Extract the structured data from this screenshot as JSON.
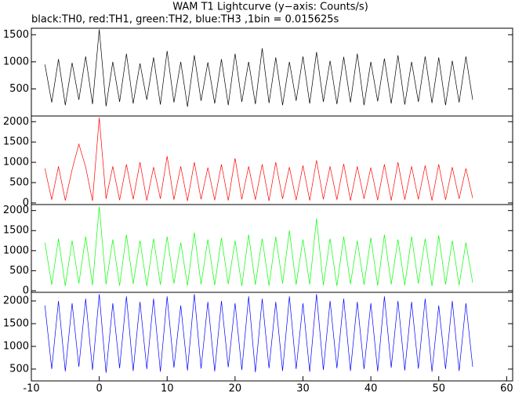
{
  "chart_data": [
    {
      "type": "line",
      "title": "WAM T1 Lightcurve (y−axis: Counts/s)",
      "subtitle": "black:TH0, red:TH1, green:TH2, blue:TH3 ,1bin = 0.015625s",
      "x": [
        -8,
        -7,
        -6,
        -5,
        -4,
        -3,
        -2,
        -1,
        0,
        1,
        2,
        3,
        4,
        5,
        6,
        7,
        8,
        9,
        10,
        11,
        12,
        13,
        14,
        15,
        16,
        17,
        18,
        19,
        20,
        21,
        22,
        23,
        24,
        25,
        26,
        27,
        28,
        29,
        30,
        31,
        32,
        33,
        34,
        35,
        36,
        37,
        38,
        39,
        40,
        41,
        42,
        43,
        44,
        45,
        46,
        47,
        48,
        49,
        50,
        51,
        52,
        53,
        54,
        55
      ],
      "xlim": [
        -10,
        61
      ],
      "ylim": [
        0,
        1620
      ],
      "yticks": [
        500,
        1000,
        1500
      ],
      "series": [
        {
          "name": "TH0",
          "color": "#000000",
          "values": [
            950,
            250,
            1050,
            200,
            980,
            300,
            1100,
            220,
            1600,
            180,
            1000,
            260,
            1150,
            230,
            970,
            300,
            1080,
            210,
            1200,
            250,
            1000,
            170,
            1120,
            280,
            990,
            230,
            1050,
            200,
            1150,
            260,
            1000,
            220,
            1250,
            240,
            1080,
            200,
            1000,
            280,
            1100,
            230,
            1180,
            260,
            1020,
            220,
            1090,
            250,
            1150,
            200,
            1000,
            270,
            1060,
            230,
            1120,
            210,
            1000,
            260,
            1100,
            240,
            1080,
            200,
            1020,
            250,
            1100,
            300
          ]
        }
      ]
    },
    {
      "type": "line",
      "x": [
        -8,
        -7,
        -6,
        -5,
        -4,
        -3,
        -2,
        -1,
        0,
        1,
        2,
        3,
        4,
        5,
        6,
        7,
        8,
        9,
        10,
        11,
        12,
        13,
        14,
        15,
        16,
        17,
        18,
        19,
        20,
        21,
        22,
        23,
        24,
        25,
        26,
        27,
        28,
        29,
        30,
        31,
        32,
        33,
        34,
        35,
        36,
        37,
        38,
        39,
        40,
        41,
        42,
        43,
        44,
        45,
        46,
        47,
        48,
        49,
        50,
        51,
        52,
        53,
        54,
        55
      ],
      "xlim": [
        -10,
        61
      ],
      "ylim": [
        -40,
        2140
      ],
      "yticks": [
        0,
        500,
        1000,
        1500,
        2000
      ],
      "series": [
        {
          "name": "TH1",
          "color": "#ff0000",
          "values": [
            850,
            80,
            900,
            60,
            820,
            1450,
            880,
            50,
            2100,
            100,
            900,
            70,
            950,
            90,
            1000,
            60,
            880,
            100,
            1150,
            80,
            900,
            50,
            1000,
            90,
            870,
            70,
            950,
            60,
            1100,
            90,
            900,
            80,
            950,
            50,
            1000,
            100,
            880,
            70,
            920,
            60,
            1050,
            90,
            900,
            80,
            960,
            60,
            900,
            100,
            870,
            70,
            950,
            60,
            1000,
            80,
            900,
            90,
            920,
            60,
            950,
            80,
            880,
            100,
            850,
            120
          ]
        }
      ]
    },
    {
      "type": "line",
      "x": [
        -8,
        -7,
        -6,
        -5,
        -4,
        -3,
        -2,
        -1,
        0,
        1,
        2,
        3,
        4,
        5,
        6,
        7,
        8,
        9,
        10,
        11,
        12,
        13,
        14,
        15,
        16,
        17,
        18,
        19,
        20,
        21,
        22,
        23,
        24,
        25,
        26,
        27,
        28,
        29,
        30,
        31,
        32,
        33,
        34,
        35,
        36,
        37,
        38,
        39,
        40,
        41,
        42,
        43,
        44,
        45,
        46,
        47,
        48,
        49,
        50,
        51,
        52,
        53,
        54,
        55
      ],
      "xlim": [
        -10,
        61
      ],
      "ylim": [
        -40,
        2150
      ],
      "yticks": [
        0,
        500,
        1000,
        1500,
        2000
      ],
      "series": [
        {
          "name": "TH2",
          "color": "#00ff00",
          "values": [
            1200,
            150,
            1300,
            120,
            1250,
            180,
            1350,
            140,
            2100,
            160,
            1280,
            130,
            1400,
            170,
            1250,
            120,
            1300,
            150,
            1350,
            180,
            1200,
            130,
            1450,
            160,
            1280,
            140,
            1320,
            170,
            1250,
            120,
            1400,
            150,
            1300,
            130,
            1350,
            180,
            1500,
            150,
            1280,
            160,
            1800,
            140,
            1300,
            120,
            1350,
            170,
            1250,
            150,
            1320,
            130,
            1400,
            160,
            1280,
            140,
            1350,
            180,
            1300,
            120,
            1380,
            160,
            1250,
            140,
            1200,
            200
          ]
        }
      ]
    },
    {
      "type": "line",
      "x": [
        -8,
        -7,
        -6,
        -5,
        -4,
        -3,
        -2,
        -1,
        0,
        1,
        2,
        3,
        4,
        5,
        6,
        7,
        8,
        9,
        10,
        11,
        12,
        13,
        14,
        15,
        16,
        17,
        18,
        19,
        20,
        21,
        22,
        23,
        24,
        25,
        26,
        27,
        28,
        29,
        30,
        31,
        32,
        33,
        34,
        35,
        36,
        37,
        38,
        39,
        40,
        41,
        42,
        43,
        44,
        45,
        46,
        47,
        48,
        49,
        50,
        51,
        52,
        53,
        54,
        55
      ],
      "xlim": [
        -10,
        61
      ],
      "ylim": [
        240,
        2190
      ],
      "yticks": [
        500,
        1000,
        1500,
        2000
      ],
      "xticks": [
        -10,
        0,
        10,
        20,
        30,
        40,
        50,
        60
      ],
      "series": [
        {
          "name": "TH3",
          "color": "#0000ff",
          "values": [
            1900,
            500,
            2000,
            450,
            1950,
            550,
            2050,
            480,
            2150,
            420,
            1950,
            520,
            2100,
            460,
            1980,
            500,
            2050,
            440,
            2100,
            530,
            1900,
            470,
            2150,
            510,
            1980,
            450,
            2000,
            540,
            1950,
            480,
            2100,
            430,
            2050,
            520,
            1980,
            460,
            2100,
            500,
            1950,
            440,
            2150,
            480,
            2000,
            520,
            2050,
            460,
            1980,
            500,
            1950,
            450,
            2100,
            530,
            2000,
            470,
            1980,
            510,
            2050,
            440,
            1900,
            500,
            2000,
            460,
            1950,
            550
          ]
        }
      ]
    }
  ]
}
